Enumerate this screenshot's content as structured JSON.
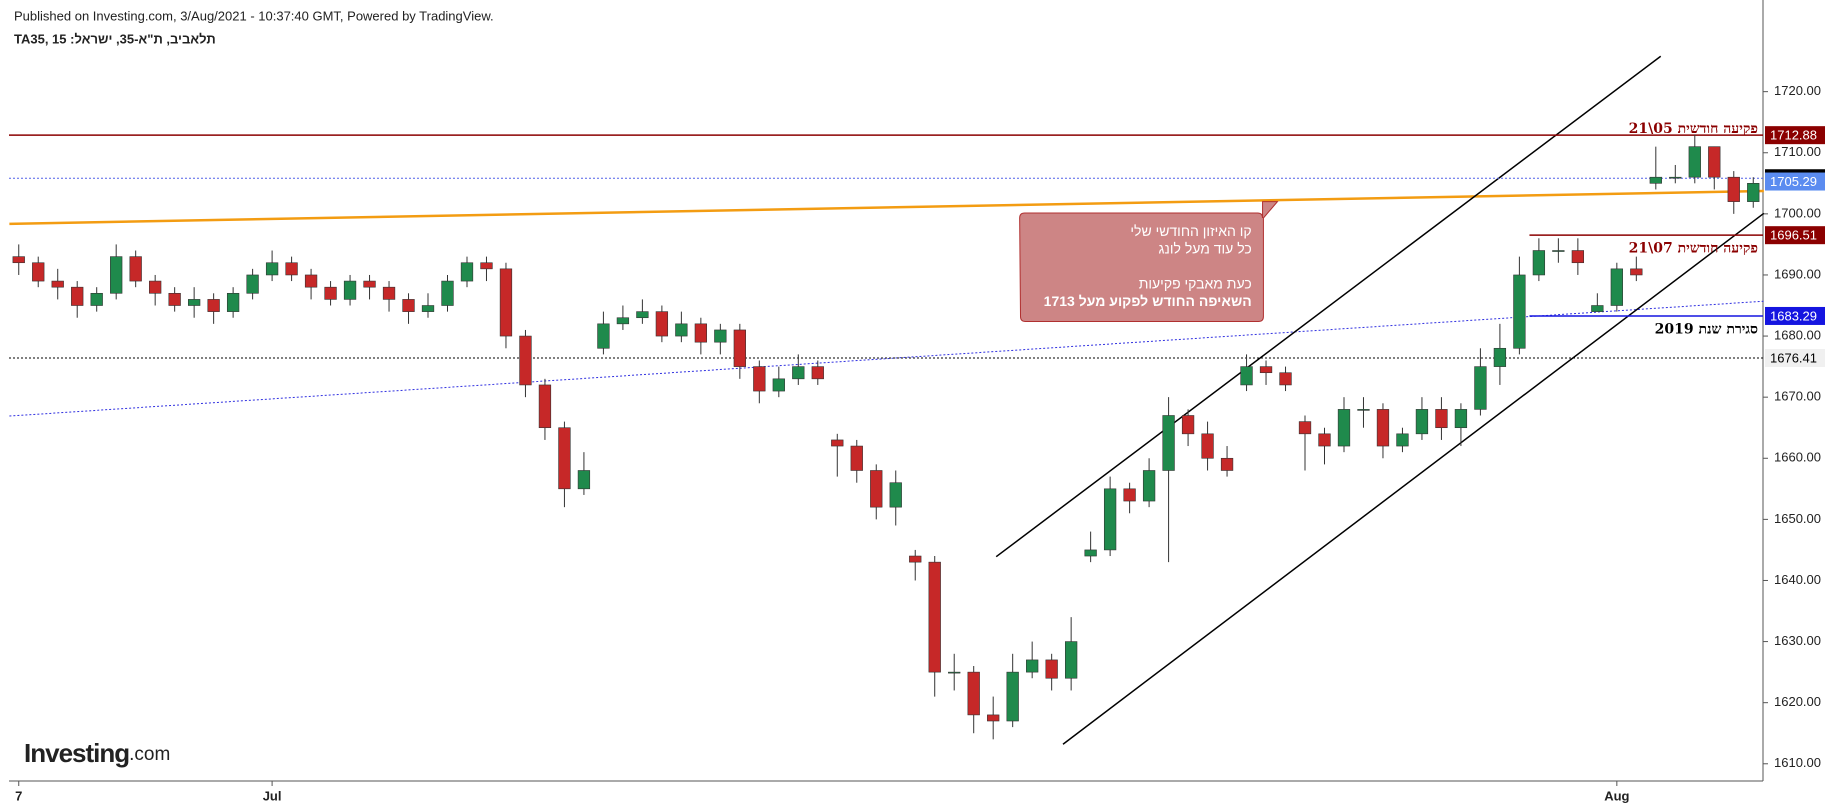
{
  "header": {
    "published": "Published on Investing.com, 3/Aug/2021 - 10:37:40 GMT, Powered by TradingView.",
    "symbol": "TA35, 15 :תלאביב, ת\"א-35, ישראל"
  },
  "logo": {
    "name": "Investing",
    "suffix": ".com"
  },
  "chart_data": {
    "type": "candlestick",
    "categories": [
      "7",
      null,
      null,
      null,
      null,
      null,
      null,
      null,
      null,
      null,
      null,
      null,
      null,
      "Jul",
      null,
      null,
      null,
      null,
      null,
      null,
      null,
      null,
      null,
      null,
      null,
      null,
      null,
      null,
      null,
      null,
      null,
      null,
      null,
      null,
      null,
      null,
      null,
      null,
      null,
      null,
      null,
      null,
      null,
      null,
      null,
      null,
      null,
      null,
      null,
      null,
      null,
      null,
      null,
      null,
      null,
      null,
      null,
      null,
      null,
      null,
      null,
      null,
      null,
      null,
      null,
      null,
      null,
      null,
      null,
      null,
      null,
      null,
      null,
      null,
      null,
      null,
      null,
      null,
      null,
      null,
      null,
      null,
      "Aug",
      null,
      null,
      null,
      null,
      null,
      null,
      null
    ],
    "open": [
      1693,
      1692,
      1689,
      1688,
      1685,
      1687,
      1693,
      1689,
      1687,
      1685,
      1686,
      1684,
      1687,
      1690,
      1692,
      1690,
      1688,
      1686,
      1689,
      1688,
      1686,
      1684,
      1685,
      1689,
      1692,
      1691,
      1680,
      1672,
      1665,
      1655,
      1678,
      1682,
      1683,
      1684,
      1680,
      1682,
      1679,
      1681,
      1675,
      1671,
      1673,
      1675,
      1663,
      1662,
      1658,
      1652,
      1644,
      1643,
      1625,
      1625,
      1618,
      1617,
      1625,
      1627,
      1624,
      1644,
      1645,
      1655,
      1653,
      1658,
      1667,
      1664,
      1660,
      1672,
      1675,
      1674,
      1666,
      1664,
      1662,
      1668,
      1668,
      1662,
      1664,
      1668,
      1665,
      1668,
      1675,
      1678,
      1690,
      1694,
      1694,
      1684,
      1685,
      1691,
      1705,
      1706,
      1706,
      1711,
      1706,
      1702
    ],
    "high": [
      1695,
      1693,
      1691,
      1689,
      1688,
      1695,
      1694,
      1690,
      1688,
      1688,
      1687,
      1688,
      1691,
      1694,
      1693,
      1691,
      1689,
      1690,
      1690,
      1689,
      1687,
      1687,
      1690,
      1693,
      1693,
      1692,
      1681,
      1673,
      1666,
      1661,
      1684,
      1685,
      1686,
      1685,
      1684,
      1683,
      1682,
      1682,
      1676,
      1675,
      1677,
      1676,
      1664,
      1663,
      1659,
      1658,
      1645,
      1644,
      1628,
      1626,
      1621,
      1628,
      1630,
      1628,
      1634,
      1648,
      1657,
      1656,
      1660,
      1670,
      1668,
      1666,
      1662,
      1677,
      1676,
      1675,
      1667,
      1665,
      1670,
      1670,
      1669,
      1665,
      1670,
      1670,
      1669,
      1678,
      1682,
      1693,
      1696,
      1696,
      1696,
      1687,
      1692,
      1693,
      1711,
      1708,
      1713,
      1711,
      1707,
      1706
    ],
    "low": [
      1690,
      1688,
      1686,
      1683,
      1684,
      1686,
      1688,
      1685,
      1684,
      1683,
      1682,
      1683,
      1686,
      1689,
      1689,
      1686,
      1685,
      1685,
      1686,
      1684,
      1682,
      1683,
      1684,
      1688,
      1689,
      1678,
      1670,
      1663,
      1652,
      1654,
      1677,
      1681,
      1682,
      1679,
      1679,
      1677,
      1677,
      1673,
      1669,
      1670,
      1672,
      1672,
      1657,
      1656,
      1650,
      1649,
      1640,
      1621,
      1622,
      1615,
      1614,
      1616,
      1624,
      1622,
      1622,
      1643,
      1644,
      1651,
      1652,
      1643,
      1662,
      1658,
      1657,
      1671,
      1672,
      1671,
      1658,
      1659,
      1661,
      1665,
      1660,
      1661,
      1663,
      1663,
      1662,
      1667,
      1672,
      1677,
      1689,
      1692,
      1690,
      1684,
      1684,
      1689,
      1704,
      1705,
      1705,
      1704,
      1700,
      1701
    ],
    "close": [
      1692,
      1689,
      1688,
      1685,
      1687,
      1693,
      1689,
      1687,
      1685,
      1686,
      1684,
      1687,
      1690,
      1692,
      1690,
      1688,
      1686,
      1689,
      1688,
      1686,
      1684,
      1685,
      1689,
      1692,
      1691,
      1680,
      1672,
      1665,
      1655,
      1658,
      1682,
      1683,
      1684,
      1680,
      1682,
      1679,
      1681,
      1675,
      1671,
      1673,
      1675,
      1673,
      1662,
      1658,
      1652,
      1656,
      1643,
      1625,
      1625,
      1618,
      1617,
      1625,
      1627,
      1624,
      1630,
      1645,
      1655,
      1653,
      1658,
      1667,
      1664,
      1660,
      1658,
      1675,
      1674,
      1672,
      1664,
      1662,
      1668,
      1668,
      1662,
      1664,
      1668,
      1665,
      1668,
      1675,
      1678,
      1690,
      1694,
      1694,
      1692,
      1685,
      1691,
      1690,
      1706,
      1706,
      1711,
      1706,
      1702,
      1705
    ],
    "up_color": "#1f8a4c",
    "down_color": "#c62828",
    "ylim": [
      1608,
      1735
    ],
    "yticks": [
      {
        "value": 1610,
        "label": "1610.00"
      },
      {
        "value": 1620,
        "label": "1620.00"
      },
      {
        "value": 1630,
        "label": "1630.00"
      },
      {
        "value": 1640,
        "label": "1640.00"
      },
      {
        "value": 1650,
        "label": "1650.00"
      },
      {
        "value": 1660,
        "label": "1660.00"
      },
      {
        "value": 1670,
        "label": "1670.00"
      },
      {
        "value": 1680,
        "label": "1680.00"
      },
      {
        "value": 1690,
        "label": "1690.00"
      },
      {
        "value": 1700,
        "label": "1700.00"
      },
      {
        "value": 1710,
        "label": "1710.00"
      },
      {
        "value": 1720,
        "label": "1720.00"
      }
    ],
    "levels": [
      {
        "value": 1712.88,
        "color": "#8b0000",
        "style": "solid"
      },
      {
        "value": 1705.83,
        "color": "#000000",
        "style": "dotted"
      },
      {
        "value": 1705.29,
        "color": "#5b8cf0",
        "style": "none"
      },
      {
        "value": 1696.51,
        "color": "#8b0000",
        "style": "solid"
      },
      {
        "value": 1683.29,
        "color": "#1515e0",
        "style": "solid"
      },
      {
        "value": 1676.41,
        "color": "#f0f0f0",
        "style": "dotted"
      }
    ],
    "annotations": [
      "פקיעה חודשית 05\\21",
      "פקיעה חודשית 07\\21",
      "סגירת שנת 2019"
    ],
    "callout": [
      "קו האיזון החודשי שלי",
      "כל עוד מעל לונג",
      "כעת מאבקי פקיעות",
      "השאיפה החודש לפקוע מעל 1713"
    ]
  }
}
